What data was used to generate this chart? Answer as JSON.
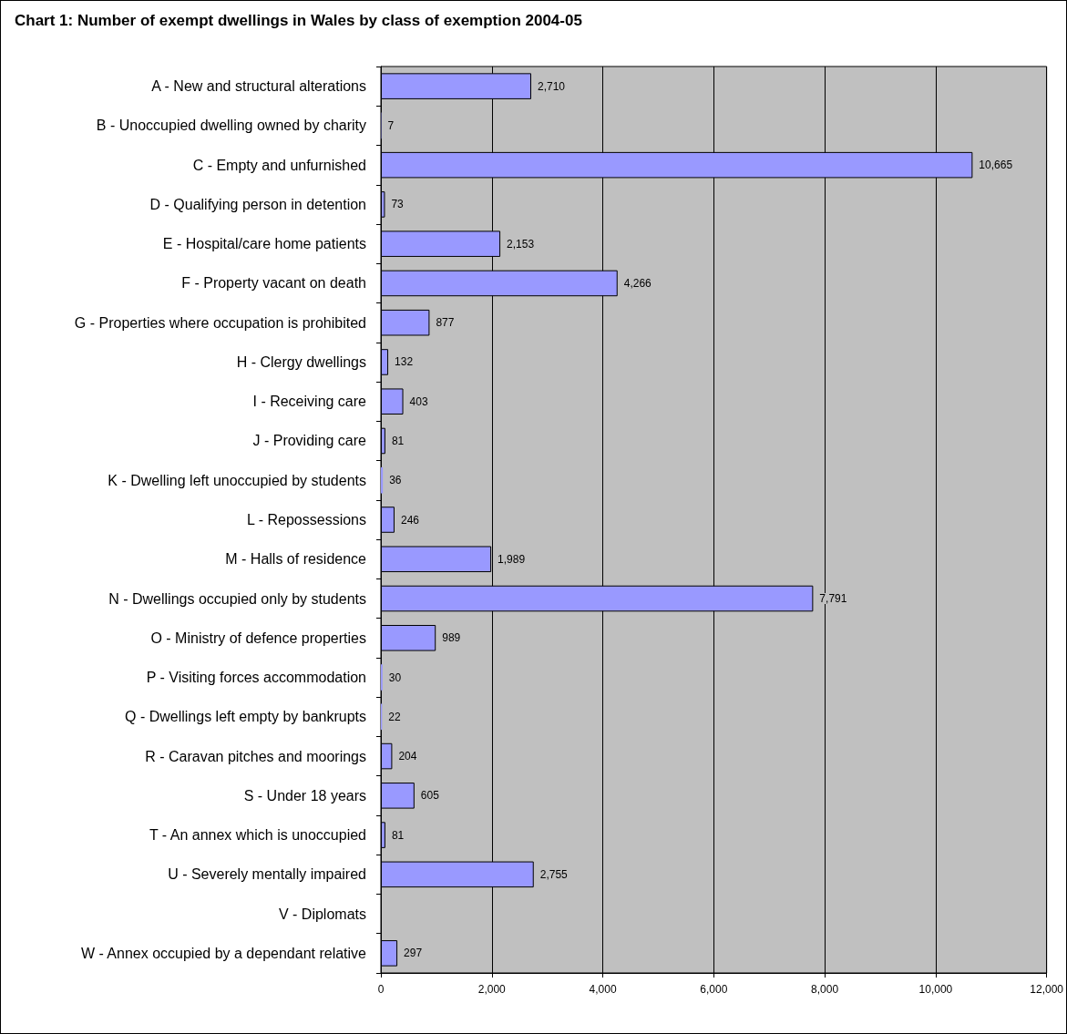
{
  "chart_data": {
    "type": "bar",
    "orientation": "horizontal",
    "title": "Chart 1: Number of exempt dwellings in Wales by class of exemption 2004-05",
    "categories": [
      "A - New and structural alterations",
      "B - Unoccupied dwelling owned by charity",
      "C - Empty and unfurnished",
      "D - Qualifying person in detention",
      "E - Hospital/care home patients",
      "F - Property vacant on death",
      "G - Properties where occupation is prohibited",
      "H - Clergy dwellings",
      "I - Receiving care",
      "J - Providing care",
      "K - Dwelling left unoccupied by students",
      "L - Repossessions",
      "M - Halls of residence",
      "N - Dwellings occupied only by students",
      "O - Ministry of defence properties",
      "P - Visiting forces accommodation",
      "Q - Dwellings left empty by bankrupts",
      "R - Caravan pitches and moorings",
      "S - Under 18 years",
      "T - An annex which is unoccupied",
      "U - Severely mentally impaired",
      "V - Diplomats",
      "W - Annex occupied by a dependant relative"
    ],
    "values": [
      2710,
      7,
      10665,
      73,
      2153,
      4266,
      877,
      132,
      403,
      81,
      36,
      246,
      1989,
      7791,
      989,
      30,
      22,
      204,
      605,
      81,
      2755,
      0,
      297
    ],
    "value_labels": [
      "2,710",
      "7",
      "10,665",
      "73",
      "2,153",
      "4,266",
      "877",
      "132",
      "403",
      "81",
      "36",
      "246",
      "1,989",
      "7,791",
      "989",
      "30",
      "22",
      "204",
      "605",
      "81",
      "2,755",
      null,
      "297"
    ],
    "color": "#9999ff",
    "xlim": [
      0,
      12000
    ],
    "xticks": [
      0,
      {
        "value": 2000,
        "label": "2,000"
      },
      {
        "value": 4000,
        "label": "4,000"
      },
      {
        "value": 6000,
        "label": "6,000"
      },
      {
        "value": 8000,
        "label": "8,000"
      },
      {
        "value": 10000,
        "label": "10,000"
      },
      {
        "value": 12000,
        "label": "12,000"
      }
    ],
    "grid": "x"
  }
}
